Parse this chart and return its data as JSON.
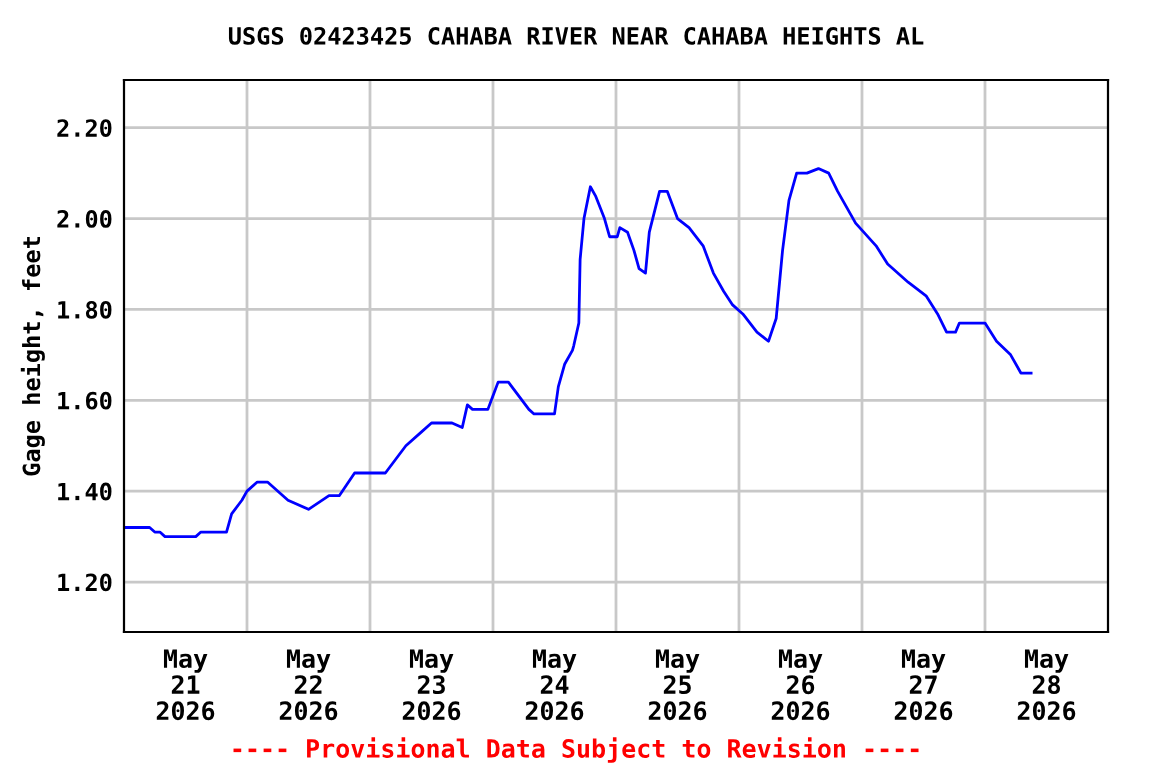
{
  "chart_data": {
    "type": "line",
    "title": "USGS 02423425 CAHABA RIVER NEAR CAHABA HEIGHTS AL",
    "ylabel": "Gage height, feet",
    "annotations": [
      "---- Provisional Data Subject to Revision ----"
    ],
    "x": [
      "2026-05-21T00:00",
      "2026-05-21T05:00",
      "2026-05-21T06:00",
      "2026-05-21T07:00",
      "2026-05-21T08:00",
      "2026-05-21T14:00",
      "2026-05-21T15:00",
      "2026-05-21T20:00",
      "2026-05-21T21:00",
      "2026-05-21T23:00",
      "2026-05-22T00:00",
      "2026-05-22T02:00",
      "2026-05-22T04:00",
      "2026-05-22T08:00",
      "2026-05-22T12:00",
      "2026-05-22T16:00",
      "2026-05-22T18:00",
      "2026-05-22T21:00",
      "2026-05-23T03:00",
      "2026-05-23T07:00",
      "2026-05-23T10:00",
      "2026-05-23T12:00",
      "2026-05-23T16:00",
      "2026-05-23T18:00",
      "2026-05-23T19:00",
      "2026-05-23T20:00",
      "2026-05-23T23:00",
      "2026-05-24T00:00",
      "2026-05-24T01:00",
      "2026-05-24T03:00",
      "2026-05-24T07:00",
      "2026-05-24T08:00",
      "2026-05-24T12:00",
      "2026-05-24T12:45",
      "2026-05-24T14:00",
      "2026-05-24T15:30",
      "2026-05-24T15:45",
      "2026-05-24T16:45",
      "2026-05-24T17:00",
      "2026-05-24T17:45",
      "2026-05-24T19:00",
      "2026-05-24T20:00",
      "2026-05-24T21:45",
      "2026-05-24T22:45",
      "2026-05-25T00:15",
      "2026-05-25T00:45",
      "2026-05-25T02:15",
      "2026-05-25T03:30",
      "2026-05-25T04:30",
      "2026-05-25T05:45",
      "2026-05-25T06:30",
      "2026-05-25T08:30",
      "2026-05-25T10:00",
      "2026-05-25T12:00",
      "2026-05-25T14:15",
      "2026-05-25T17:00",
      "2026-05-25T19:00",
      "2026-05-25T21:00",
      "2026-05-25T22:45",
      "2026-05-26T00:45",
      "2026-05-26T03:30",
      "2026-05-26T05:45",
      "2026-05-26T07:15",
      "2026-05-26T08:30",
      "2026-05-26T09:45",
      "2026-05-26T11:15",
      "2026-05-26T13:15",
      "2026-05-26T15:30",
      "2026-05-26T17:30",
      "2026-05-26T19:15",
      "2026-05-26T22:45",
      "2026-05-27T02:45",
      "2026-05-27T05:00",
      "2026-05-27T09:00",
      "2026-05-27T12:30",
      "2026-05-27T14:45",
      "2026-05-27T16:30",
      "2026-05-27T18:15",
      "2026-05-27T19:00",
      "2026-05-28T00:00",
      "2026-05-28T02:15",
      "2026-05-28T05:00",
      "2026-05-28T07:00",
      "2026-05-28T09:00"
    ],
    "series": [
      {
        "color": "#0000ff",
        "values": [
          1.32,
          1.32,
          1.31,
          1.31,
          1.3,
          1.3,
          1.31,
          1.31,
          1.35,
          1.38,
          1.4,
          1.42,
          1.42,
          1.38,
          1.36,
          1.39,
          1.39,
          1.44,
          1.44,
          1.5,
          1.53,
          1.55,
          1.55,
          1.54,
          1.59,
          1.58,
          1.58,
          1.61,
          1.64,
          1.64,
          1.58,
          1.57,
          1.57,
          1.63,
          1.68,
          1.71,
          1.72,
          1.77,
          1.91,
          2.0,
          2.07,
          2.05,
          2.0,
          1.96,
          1.96,
          1.98,
          1.97,
          1.93,
          1.89,
          1.88,
          1.97,
          2.06,
          2.06,
          2.0,
          1.98,
          1.94,
          1.88,
          1.84,
          1.81,
          1.79,
          1.75,
          1.73,
          1.78,
          1.93,
          2.04,
          2.1,
          2.1,
          2.11,
          2.1,
          2.06,
          1.99,
          1.94,
          1.9,
          1.86,
          1.83,
          1.79,
          1.75,
          1.75,
          1.77,
          1.77,
          1.73,
          1.7,
          1.66,
          1.66
        ]
      }
    ],
    "xlim": [
      "2026-05-21T00:00",
      "2026-05-29T00:00"
    ],
    "xticks": [
      {
        "value": "2026-05-21T12:00",
        "label": "May\n21\n2026"
      },
      {
        "value": "2026-05-22T00:00",
        "label": null
      },
      {
        "value": "2026-05-22T12:00",
        "label": "May\n22\n2026"
      },
      {
        "value": "2026-05-23T00:00",
        "label": null
      },
      {
        "value": "2026-05-23T12:00",
        "label": "May\n23\n2026"
      },
      {
        "value": "2026-05-24T00:00",
        "label": null
      },
      {
        "value": "2026-05-24T12:00",
        "label": "May\n24\n2026"
      },
      {
        "value": "2026-05-25T00:00",
        "label": null
      },
      {
        "value": "2026-05-25T12:00",
        "label": "May\n25\n2026"
      },
      {
        "value": "2026-05-26T00:00",
        "label": null
      },
      {
        "value": "2026-05-26T12:00",
        "label": "May\n26\n2026"
      },
      {
        "value": "2026-05-27T00:00",
        "label": null
      },
      {
        "value": "2026-05-27T12:00",
        "label": "May\n27\n2026"
      },
      {
        "value": "2026-05-28T00:00",
        "label": null
      },
      {
        "value": "2026-05-28T12:00",
        "label": "May\n28\n2026"
      }
    ],
    "ylim": [
      1.09,
      2.305
    ],
    "yticks": [
      {
        "value": 1.2,
        "label": "1.20"
      },
      {
        "value": 1.4,
        "label": "1.40"
      },
      {
        "value": 1.6,
        "label": "1.60"
      },
      {
        "value": 1.8,
        "label": "1.80"
      },
      {
        "value": 2.0,
        "label": "2.00"
      },
      {
        "value": 2.2,
        "label": "2.20"
      }
    ],
    "grid": true,
    "legend": false,
    "marker": "none",
    "line_style": "solid"
  }
}
